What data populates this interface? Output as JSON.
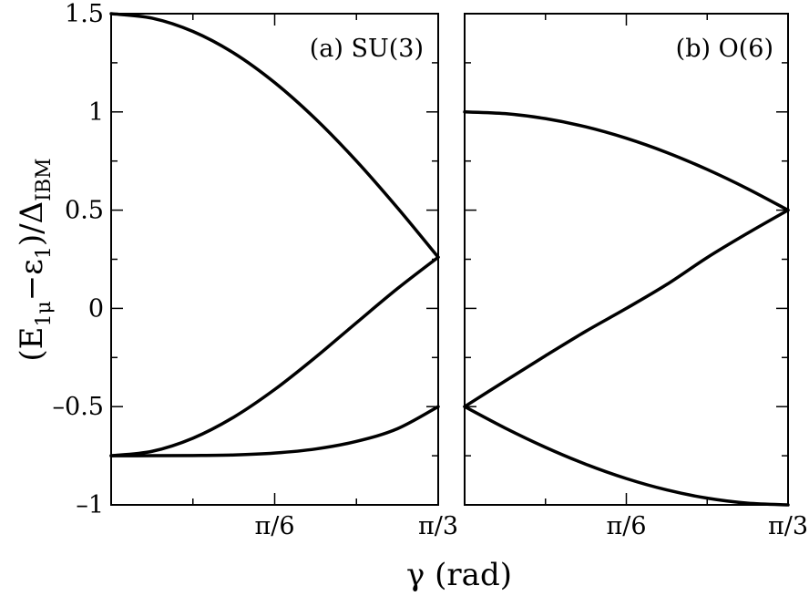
{
  "chart_data": [
    {
      "type": "line",
      "panel_label": "(a)",
      "model": "SU(3)",
      "xlim": [
        0,
        1.0472
      ],
      "ylim": [
        -1,
        1.5
      ],
      "x_ticks": [
        {
          "value": 0.5236,
          "label": "π/6"
        },
        {
          "value": 1.0472,
          "label": "π/3"
        }
      ],
      "y_ticks": [
        {
          "value": 1.5,
          "label": "1.5"
        },
        {
          "value": 1,
          "label": "1"
        },
        {
          "value": 0.5,
          "label": "0.5"
        },
        {
          "value": 0,
          "label": "0"
        },
        {
          "value": -0.5,
          "label": "–0.5"
        },
        {
          "value": -1,
          "label": "–1"
        }
      ],
      "series": [
        {
          "x": [
            0,
            0.1309,
            0.2618,
            0.3927,
            0.5236,
            0.6545,
            0.7854,
            0.9163,
            1.0472
          ],
          "y": [
            1.5,
            1.4772,
            1.4095,
            1.2994,
            1.1491,
            0.9642,
            0.75,
            0.5125,
            0.2605
          ]
        },
        {
          "x": [
            0,
            0.1309,
            0.2618,
            0.3927,
            0.5236,
            0.6545,
            0.7854,
            0.9163,
            1.0472
          ],
          "y": [
            -0.75,
            -0.7274,
            -0.6606,
            -0.5534,
            -0.4128,
            -0.2486,
            -0.0732,
            0.1002,
            0.2605
          ]
        },
        {
          "x": [
            0,
            0.1309,
            0.2618,
            0.3927,
            0.5236,
            0.6545,
            0.7854,
            0.9163,
            1.0472
          ],
          "y": [
            -0.75,
            -0.7498,
            -0.7489,
            -0.7461,
            -0.7363,
            -0.7156,
            -0.6768,
            -0.6127,
            -0.5
          ]
        }
      ]
    },
    {
      "type": "line",
      "panel_label": "(b)",
      "model": "O(6)",
      "xlim": [
        0,
        1.0472
      ],
      "ylim": [
        -1,
        1.5
      ],
      "x_ticks": [
        {
          "value": 0.5236,
          "label": "π/6"
        },
        {
          "value": 1.0472,
          "label": "π/3"
        }
      ],
      "series": [
        {
          "x": [
            0,
            0.1309,
            0.2618,
            0.3927,
            0.5236,
            0.6545,
            0.7854,
            0.9163,
            1.0472
          ],
          "y": [
            1.0,
            0.9914,
            0.9659,
            0.9239,
            0.866,
            0.7934,
            0.7071,
            0.6088,
            0.5
          ]
        },
        {
          "x": [
            0,
            0.1309,
            0.2618,
            0.3927,
            0.5236,
            0.6545,
            0.7854,
            0.9163,
            1.0472
          ],
          "y": [
            -0.5,
            -0.3697,
            -0.2412,
            -0.1161,
            0.0,
            0.1217,
            0.2588,
            0.3827,
            0.5
          ]
        },
        {
          "x": [
            0,
            0.1309,
            0.2618,
            0.3927,
            0.5236,
            0.6545,
            0.7854,
            0.9163,
            1.0472
          ],
          "y": [
            -0.5,
            -0.6088,
            -0.7071,
            -0.7934,
            -0.866,
            -0.9239,
            -0.9659,
            -0.9914,
            -1.0
          ]
        }
      ]
    }
  ],
  "labels": {
    "x_title_symbol": "γ",
    "x_title_unit": " (rad)",
    "y_title_open": "(E",
    "y_title_sub1": "1μ",
    "y_title_mid": "−ε",
    "y_title_sub2": "1",
    "y_title_close": ")/Δ",
    "y_title_sub3": "IBM"
  }
}
